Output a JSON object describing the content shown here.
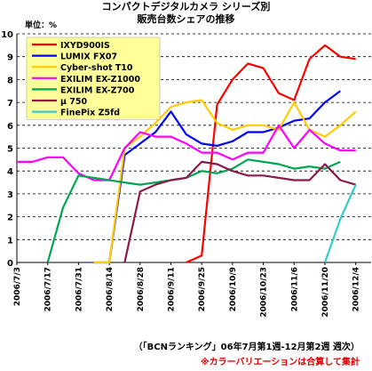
{
  "chart_data": {
    "type": "line",
    "title": "コンパクトデジタルカメラ シリーズ別",
    "subtitle": "販売台数シェアの推移",
    "unit_label": "単位：%",
    "ylim": [
      0,
      10
    ],
    "yticks": [
      0,
      1,
      2,
      3,
      4,
      5,
      6,
      7,
      8,
      9,
      10
    ],
    "x": [
      "2006/7/3",
      "2006/7/10",
      "2006/7/17",
      "2006/7/24",
      "2006/7/31",
      "2006/8/7",
      "2006/8/14",
      "2006/8/21",
      "2006/8/28",
      "2006/9/4",
      "2006/9/11",
      "2006/9/18",
      "2006/9/25",
      "2006/10/2",
      "2006/10/9",
      "2006/10/16",
      "2006/10/23",
      "2006/10/30",
      "2006/11/6",
      "2006/11/13",
      "2006/11/20",
      "2006/11/27",
      "2006/12/4",
      "2006/12/11"
    ],
    "x_tick_labels": [
      "2006/7/3",
      "2006/7/17",
      "2006/7/31",
      "2006/8/14",
      "2006/8/28",
      "2006/9/11",
      "2006/9/25",
      "2006/10/9",
      "2006/10/23",
      "2006/11/6",
      "2006/11/20",
      "2006/12/4"
    ],
    "grid": "horizontal-dashed",
    "legend_position": "top-left",
    "series": [
      {
        "name": "IXYD900IS",
        "color": "#ff0000",
        "values": [
          null,
          null,
          null,
          null,
          null,
          null,
          null,
          null,
          null,
          null,
          null,
          0,
          0.3,
          6.9,
          8.0,
          8.7,
          8.5,
          7.4,
          7.1,
          8.9,
          9.5,
          9.0,
          8.9,
          null
        ]
      },
      {
        "name": "LUMIX FX07",
        "color": "#0000ff",
        "values": [
          null,
          null,
          null,
          null,
          null,
          0,
          0,
          4.7,
          5.2,
          5.7,
          6.6,
          5.6,
          5.2,
          5.1,
          5.3,
          5.7,
          5.7,
          5.9,
          6.2,
          6.3,
          7.0,
          7.5,
          null,
          null
        ]
      },
      {
        "name": "Cyber-shot T10",
        "color": "#ffcc00",
        "values": [
          null,
          null,
          null,
          null,
          null,
          0,
          0,
          5.0,
          5.5,
          6.1,
          6.8,
          7.0,
          7.1,
          6.1,
          5.8,
          6.0,
          6.0,
          5.8,
          7.0,
          5.8,
          5.5,
          6.0,
          6.6,
          null
        ]
      },
      {
        "name": "EXILIM EX-Z1000",
        "color": "#ff00ff",
        "values": [
          4.4,
          4.4,
          4.6,
          4.6,
          3.9,
          3.6,
          3.6,
          5.0,
          5.7,
          5.5,
          5.5,
          5.2,
          4.8,
          4.8,
          4.5,
          4.8,
          4.8,
          6.0,
          5.0,
          5.8,
          5.2,
          4.9,
          4.9,
          null
        ]
      },
      {
        "name": "EXILIM EX-Z700",
        "color": "#00a651",
        "values": [
          null,
          null,
          0,
          2.4,
          3.8,
          3.7,
          3.6,
          3.5,
          3.4,
          3.5,
          3.6,
          3.7,
          4.0,
          3.9,
          4.1,
          4.5,
          4.4,
          4.3,
          4.1,
          4.2,
          4.1,
          4.4,
          null,
          null
        ]
      },
      {
        "name": "μ 750",
        "color": "#8b1a4a",
        "values": [
          null,
          null,
          null,
          null,
          null,
          null,
          null,
          0,
          3.1,
          3.4,
          3.6,
          3.7,
          4.4,
          4.3,
          4.0,
          3.8,
          3.8,
          3.7,
          3.6,
          3.6,
          4.3,
          3.6,
          3.4,
          null
        ]
      },
      {
        "name": "FinePix Z5fd",
        "color": "#33cccc",
        "values": [
          null,
          null,
          null,
          null,
          null,
          null,
          null,
          null,
          null,
          null,
          null,
          null,
          null,
          null,
          null,
          null,
          null,
          null,
          null,
          null,
          0,
          1.9,
          3.4,
          null
        ]
      }
    ]
  },
  "footer": {
    "source": "（「BCNランキング」06年7月第1週-12月第2週  週次）",
    "note": "※カラーバリエーションは合算して集計"
  }
}
